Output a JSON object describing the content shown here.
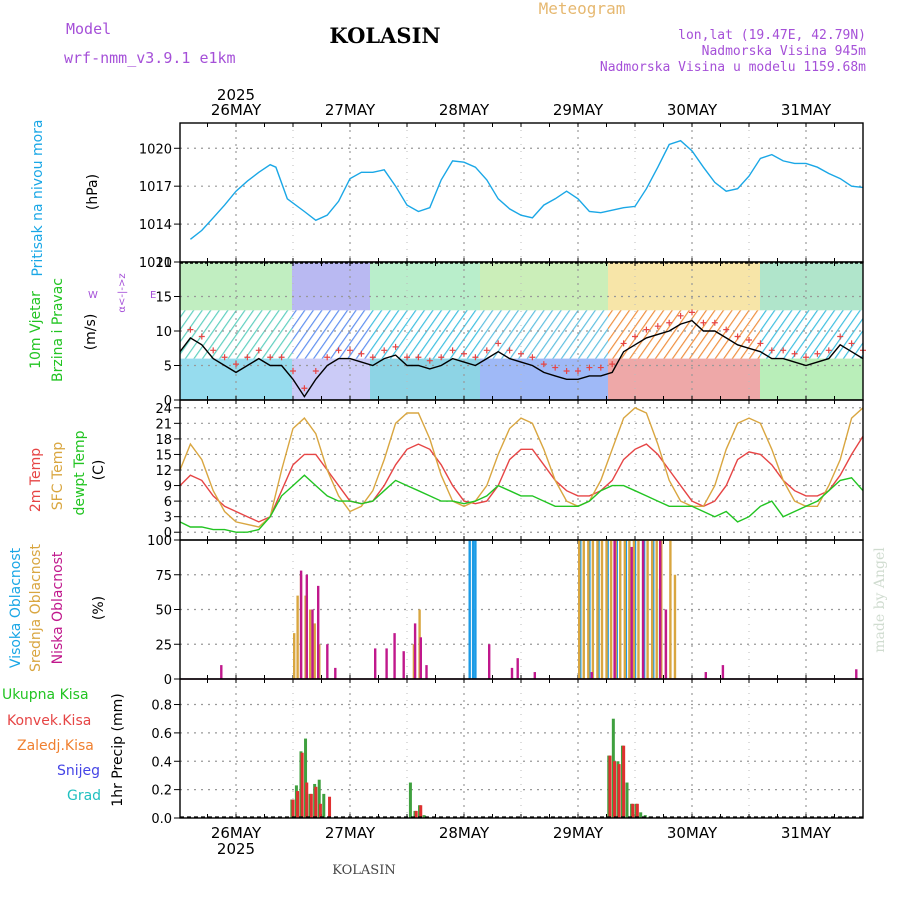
{
  "header": {
    "model_label": "Model",
    "model_name": "wrf-nmm_v3.9.1  e1km",
    "station": "KOLASIN",
    "meteogram": "Meteogram",
    "coords": "lon,lat (19.47E, 42.79N)",
    "elevation": "Nadmorska Visina 945m",
    "model_elevation": "Nadmorska Visina u modelu 1159.68m",
    "footer_station": "KOLASIN",
    "watermark": "made by Angel"
  },
  "colors": {
    "pressure": "#1aa7e6",
    "temp2m": "#e64545",
    "sfc": "#d9a640",
    "dewpt": "#22c422",
    "high_cloud": "#1a9be6",
    "mid_cloud": "#d9a640",
    "low_cloud": "#c0188c",
    "precip_total": "#3fa03f",
    "precip_conv": "#e03030",
    "axis_label_purple": "#a550d8"
  },
  "time_axis": {
    "top_year": "2025",
    "bottom_year": "2025",
    "days": [
      "26MAY",
      "27MAY",
      "28MAY",
      "29MAY",
      "30MAY",
      "31MAY"
    ]
  },
  "chart_data": [
    {
      "type": "line",
      "title": "Pritisak na nivou mora",
      "ylabel": "(hPa)",
      "ylim": [
        1011,
        1022
      ],
      "yticks": [
        1011,
        1014,
        1017,
        1020
      ],
      "x_unit": "days from 26MAY 00UTC",
      "grid": true,
      "series": [
        {
          "name": "Pritisak na nivou mora",
          "x": [
            -0.4,
            -0.3,
            -0.2,
            -0.1,
            0.0,
            0.1,
            0.2,
            0.3,
            0.35,
            0.45,
            0.6,
            0.7,
            0.8,
            0.9,
            1.0,
            1.1,
            1.2,
            1.3,
            1.4,
            1.5,
            1.6,
            1.7,
            1.8,
            1.9,
            2.0,
            2.1,
            2.2,
            2.3,
            2.4,
            2.5,
            2.6,
            2.7,
            2.8,
            2.9,
            3.0,
            3.1,
            3.2,
            3.3,
            3.4,
            3.5,
            3.6,
            3.7,
            3.8,
            3.9,
            4.0,
            4.1,
            4.2,
            4.3,
            4.4,
            4.5,
            4.6,
            4.7,
            4.8,
            4.9,
            5.0,
            5.1,
            5.2,
            5.3,
            5.4,
            5.5
          ],
          "values": [
            1012.8,
            1013.5,
            1014.5,
            1015.5,
            1016.6,
            1017.4,
            1018.1,
            1018.7,
            1018.5,
            1016.0,
            1015.0,
            1014.3,
            1014.7,
            1015.8,
            1017.6,
            1018.1,
            1018.1,
            1018.3,
            1017.0,
            1015.5,
            1015.0,
            1015.3,
            1017.5,
            1019.0,
            1018.9,
            1018.5,
            1017.5,
            1016.0,
            1015.2,
            1014.7,
            1014.5,
            1015.5,
            1016.0,
            1016.6,
            1016.0,
            1015.0,
            1014.9,
            1015.1,
            1015.3,
            1015.4,
            1016.8,
            1018.5,
            1020.3,
            1020.6,
            1019.8,
            1018.5,
            1017.3,
            1016.6,
            1016.8,
            1017.8,
            1019.2,
            1019.5,
            1019.0,
            1018.8,
            1018.8,
            1018.5,
            1018.0,
            1017.6,
            1017.0,
            1016.9
          ]
        }
      ]
    },
    {
      "type": "line",
      "title": "10m Vjetar Brzina i Pravac",
      "ylabel": "(m/s)",
      "ylim": [
        0,
        20
      ],
      "yticks": [
        0,
        5,
        10,
        15,
        20
      ],
      "direction_legend": [
        "N",
        "E",
        "S",
        "W"
      ],
      "grid": true,
      "series": [
        {
          "name": "Brzina",
          "x": [
            -0.5,
            -0.4,
            -0.3,
            -0.2,
            -0.1,
            0.0,
            0.1,
            0.2,
            0.3,
            0.4,
            0.5,
            0.6,
            0.7,
            0.8,
            0.9,
            1.0,
            1.1,
            1.2,
            1.3,
            1.4,
            1.5,
            1.6,
            1.7,
            1.8,
            1.9,
            2.0,
            2.1,
            2.2,
            2.3,
            2.4,
            2.5,
            2.6,
            2.7,
            2.8,
            2.9,
            3.0,
            3.1,
            3.2,
            3.3,
            3.4,
            3.5,
            3.6,
            3.7,
            3.8,
            3.9,
            4.0,
            4.1,
            4.2,
            4.3,
            4.4,
            4.5,
            4.6,
            4.7,
            4.8,
            4.9,
            5.0,
            5.1,
            5.2,
            5.3,
            5.4,
            5.5
          ],
          "values": [
            7,
            9,
            8,
            6,
            5,
            4,
            5,
            6,
            5,
            5,
            3,
            0.5,
            3,
            5,
            6,
            6,
            5.5,
            5,
            6,
            6.5,
            5,
            5,
            4.5,
            5,
            6,
            5.5,
            5,
            6,
            7,
            6,
            5.5,
            5,
            4,
            3.5,
            3,
            3,
            3.5,
            3.5,
            4,
            7,
            8,
            9,
            9.5,
            10,
            11,
            11.5,
            10,
            10,
            9,
            8,
            7.5,
            7,
            6,
            6,
            5.5,
            5,
            5.5,
            6,
            8,
            7,
            6
          ]
        }
      ]
    },
    {
      "type": "line",
      "title": "2m Temp / SFC Temp / dewpt Temp",
      "ylabel": "(C)",
      "ylim": [
        -1.5,
        25.5
      ],
      "yticks": [
        0,
        3,
        6,
        9,
        12,
        15,
        18,
        21,
        24
      ],
      "grid": true,
      "series": [
        {
          "name": "2m Temp",
          "x": [
            -0.5,
            -0.4,
            -0.3,
            -0.2,
            -0.1,
            0.0,
            0.1,
            0.2,
            0.3,
            0.4,
            0.5,
            0.6,
            0.7,
            0.8,
            0.9,
            1.0,
            1.1,
            1.2,
            1.3,
            1.4,
            1.5,
            1.6,
            1.7,
            1.8,
            1.9,
            2.0,
            2.1,
            2.2,
            2.3,
            2.4,
            2.5,
            2.6,
            2.7,
            2.8,
            2.9,
            3.0,
            3.1,
            3.2,
            3.3,
            3.4,
            3.5,
            3.6,
            3.7,
            3.8,
            3.9,
            4.0,
            4.1,
            4.2,
            4.3,
            4.4,
            4.5,
            4.6,
            4.7,
            4.8,
            4.9,
            5.0,
            5.1,
            5.2,
            5.3,
            5.4,
            5.5
          ],
          "values": [
            9,
            11,
            10,
            7,
            5,
            4,
            3,
            2,
            3,
            8,
            13,
            15,
            15,
            12,
            9,
            6,
            5.5,
            6,
            9,
            13,
            16,
            17,
            16,
            13,
            9,
            6,
            5.5,
            6,
            9,
            14,
            16,
            16,
            13,
            10,
            8,
            7,
            7,
            8,
            10,
            14,
            16,
            17,
            15,
            12,
            9,
            6,
            5,
            6,
            9,
            14,
            15.5,
            15,
            13,
            10,
            8,
            7,
            7,
            8,
            11,
            15,
            18.5
          ]
        },
        {
          "name": "SFC Temp",
          "x": [
            -0.5,
            -0.4,
            -0.3,
            -0.2,
            -0.1,
            0.0,
            0.1,
            0.2,
            0.3,
            0.4,
            0.5,
            0.6,
            0.7,
            0.8,
            0.9,
            1.0,
            1.1,
            1.2,
            1.3,
            1.4,
            1.5,
            1.6,
            1.7,
            1.8,
            1.9,
            2.0,
            2.1,
            2.2,
            2.3,
            2.4,
            2.5,
            2.6,
            2.7,
            2.8,
            2.9,
            3.0,
            3.1,
            3.2,
            3.3,
            3.4,
            3.5,
            3.6,
            3.7,
            3.8,
            3.9,
            4.0,
            4.1,
            4.2,
            4.3,
            4.4,
            4.5,
            4.6,
            4.7,
            4.8,
            4.9,
            5.0,
            5.1,
            5.2,
            5.3,
            5.4,
            5.5
          ],
          "values": [
            12,
            17,
            14,
            8,
            4,
            2,
            1.5,
            1,
            3,
            12,
            20,
            22,
            19,
            12,
            7,
            4,
            5,
            8,
            14,
            21,
            23,
            23,
            18,
            11,
            6,
            5,
            6,
            9,
            15,
            20,
            22,
            21,
            16,
            10,
            6,
            5,
            6,
            10,
            16,
            22,
            24,
            23,
            17,
            10,
            6,
            5,
            5,
            9,
            16,
            21,
            22,
            21,
            16,
            10,
            6,
            5,
            5,
            9,
            14,
            22,
            24
          ]
        },
        {
          "name": "dewpt Temp",
          "x": [
            -0.5,
            -0.4,
            -0.3,
            -0.2,
            -0.1,
            0.0,
            0.1,
            0.2,
            0.3,
            0.4,
            0.5,
            0.6,
            0.7,
            0.8,
            0.9,
            1.0,
            1.1,
            1.2,
            1.3,
            1.4,
            1.5,
            1.6,
            1.7,
            1.8,
            1.9,
            2.0,
            2.1,
            2.2,
            2.3,
            2.4,
            2.5,
            2.6,
            2.7,
            2.8,
            2.9,
            3.0,
            3.1,
            3.2,
            3.3,
            3.4,
            3.5,
            3.6,
            3.7,
            3.8,
            3.9,
            4.0,
            4.1,
            4.2,
            4.3,
            4.4,
            4.5,
            4.6,
            4.7,
            4.8,
            4.9,
            5.0,
            5.1,
            5.2,
            5.3,
            5.4,
            5.5
          ],
          "values": [
            2,
            1,
            1,
            0.5,
            0.5,
            0,
            0,
            0.5,
            3,
            7,
            9,
            11,
            9,
            7,
            6,
            6,
            5.5,
            6,
            8,
            10,
            9,
            8,
            7,
            6,
            6,
            5.5,
            6,
            7,
            9,
            8,
            7,
            7,
            6,
            5,
            5,
            5,
            6,
            8,
            9,
            9,
            8,
            7,
            6,
            5,
            5,
            5,
            4,
            3,
            4,
            2,
            3,
            5,
            6,
            3,
            4,
            5,
            6,
            8,
            10,
            10.5,
            8
          ]
        }
      ]
    },
    {
      "type": "bar",
      "title": "Visoka Oblacnost / Srednja Oblacnost / Niska Oblacnost",
      "ylabel": "(%)",
      "ylim": [
        0,
        100
      ],
      "yticks": [
        0,
        25,
        50,
        75,
        100
      ],
      "grid": true,
      "series": [
        {
          "name": "Visoka Oblacnost",
          "x": [
            2.05,
            2.08,
            2.1,
            3.02,
            3.1,
            3.18,
            3.26,
            3.34,
            3.42,
            3.5,
            3.58,
            3.66,
            3.72
          ],
          "values": [
            100,
            100,
            100,
            100,
            100,
            100,
            100,
            100,
            100,
            100,
            100,
            100,
            65
          ]
        },
        {
          "name": "Srednja Oblacnost",
          "x": [
            0.5,
            0.53,
            0.56,
            0.6,
            0.64,
            0.68,
            0.72,
            1.55,
            1.6,
            3.0,
            3.04,
            3.08,
            3.12,
            3.16,
            3.2,
            3.24,
            3.28,
            3.32,
            3.36,
            3.4,
            3.44,
            3.48,
            3.52,
            3.56,
            3.6,
            3.64,
            3.68,
            3.72,
            3.76,
            3.8,
            3.84
          ],
          "values": [
            33,
            60,
            75,
            60,
            50,
            40,
            25,
            25,
            50,
            100,
            100,
            100,
            100,
            100,
            100,
            100,
            100,
            100,
            100,
            100,
            100,
            100,
            100,
            100,
            100,
            100,
            100,
            100,
            50,
            100,
            75
          ]
        },
        {
          "name": "Niska Oblacnost",
          "x": [
            -0.15,
            0.55,
            0.6,
            0.65,
            0.7,
            0.78,
            0.85,
            1.2,
            1.3,
            1.37,
            1.45,
            1.55,
            1.6,
            1.65,
            2.2,
            2.4,
            2.45,
            2.6,
            3.1,
            3.3,
            3.45,
            3.55,
            3.7,
            3.75,
            4.1,
            4.25,
            5.42
          ],
          "values": [
            10,
            78,
            75,
            50,
            67,
            25,
            8,
            22,
            22,
            33,
            20,
            40,
            30,
            10,
            25,
            8,
            15,
            5,
            5,
            100,
            95,
            100,
            100,
            50,
            5,
            10,
            7
          ]
        }
      ]
    },
    {
      "type": "bar",
      "title": "Ukupna Kisa / Konvek.Kisa / Zaledj.Kisa / Snijeg / Grad",
      "ylabel": "1hr Precip (mm)",
      "ylim": [
        0,
        0.98
      ],
      "yticks": [
        0,
        0.2,
        0.4,
        0.6,
        0.8
      ],
      "grid": true,
      "series": [
        {
          "name": "Ukupna Kisa",
          "x": [
            0.49,
            0.53,
            0.57,
            0.61,
            0.65,
            0.69,
            0.73,
            0.77,
            0.81,
            1.53,
            1.57,
            1.61,
            1.65,
            3.27,
            3.31,
            3.35,
            3.39,
            3.43,
            3.47,
            3.51,
            3.55,
            3.59,
            3.63
          ],
          "values": [
            0.13,
            0.23,
            0.47,
            0.56,
            0.17,
            0.24,
            0.27,
            0.17,
            0.0,
            0.25,
            0.05,
            0.09,
            0.02,
            0.44,
            0.7,
            0.4,
            0.51,
            0.25,
            0.1,
            0.1,
            0.04,
            0.02,
            0.01
          ]
        },
        {
          "name": "Konvek.Kisa",
          "x": [
            0.49,
            0.53,
            0.57,
            0.61,
            0.65,
            0.69,
            0.73,
            0.81,
            1.57,
            1.61,
            3.27,
            3.31,
            3.35,
            3.39,
            3.47,
            3.51
          ],
          "values": [
            0.13,
            0.19,
            0.46,
            0.25,
            0.17,
            0.22,
            0.1,
            0.15,
            0.05,
            0.09,
            0.44,
            0.4,
            0.38,
            0.51,
            0.1,
            0.1
          ]
        }
      ]
    }
  ]
}
